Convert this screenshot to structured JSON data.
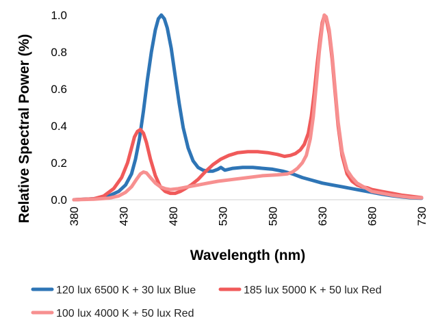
{
  "chart_data": {
    "type": "line",
    "title": "",
    "xlabel": "Wavelength (nm)",
    "ylabel": "Relative Spectral Power (%)",
    "xlim": [
      380,
      730
    ],
    "ylim": [
      0,
      1.0
    ],
    "xticks": [
      380,
      430,
      480,
      530,
      580,
      630,
      680,
      730
    ],
    "yticks": [
      "0.0",
      "0.2",
      "0.4",
      "0.6",
      "0.8",
      "1.0"
    ],
    "grid": false,
    "legend_position": "bottom",
    "series": [
      {
        "name": "120 lux 6500 K + 30 lux Blue",
        "color": "#2E75B6",
        "points": [
          [
            380,
            0.0
          ],
          [
            400,
            0.005
          ],
          [
            415,
            0.02
          ],
          [
            425,
            0.045
          ],
          [
            432,
            0.08
          ],
          [
            438,
            0.14
          ],
          [
            442,
            0.22
          ],
          [
            446,
            0.33
          ],
          [
            450,
            0.48
          ],
          [
            454,
            0.65
          ],
          [
            458,
            0.8
          ],
          [
            462,
            0.92
          ],
          [
            465,
            0.98
          ],
          [
            468,
            1.0
          ],
          [
            471,
            0.98
          ],
          [
            474,
            0.93
          ],
          [
            478,
            0.82
          ],
          [
            482,
            0.67
          ],
          [
            486,
            0.52
          ],
          [
            490,
            0.39
          ],
          [
            495,
            0.28
          ],
          [
            500,
            0.21
          ],
          [
            505,
            0.175
          ],
          [
            510,
            0.16
          ],
          [
            515,
            0.155
          ],
          [
            520,
            0.155
          ],
          [
            525,
            0.165
          ],
          [
            528,
            0.175
          ],
          [
            532,
            0.16
          ],
          [
            540,
            0.17
          ],
          [
            550,
            0.175
          ],
          [
            560,
            0.175
          ],
          [
            570,
            0.17
          ],
          [
            580,
            0.165
          ],
          [
            590,
            0.155
          ],
          [
            600,
            0.14
          ],
          [
            610,
            0.12
          ],
          [
            620,
            0.105
          ],
          [
            630,
            0.09
          ],
          [
            640,
            0.08
          ],
          [
            650,
            0.07
          ],
          [
            660,
            0.06
          ],
          [
            670,
            0.05
          ],
          [
            680,
            0.04
          ],
          [
            690,
            0.03
          ],
          [
            700,
            0.022
          ],
          [
            710,
            0.015
          ],
          [
            720,
            0.01
          ],
          [
            730,
            0.008
          ]
        ]
      },
      {
        "name": "185 lux 5000 K + 50 lux Red",
        "color": "#F05A5A",
        "points": [
          [
            380,
            0.0
          ],
          [
            400,
            0.005
          ],
          [
            410,
            0.02
          ],
          [
            420,
            0.06
          ],
          [
            428,
            0.12
          ],
          [
            434,
            0.2
          ],
          [
            438,
            0.28
          ],
          [
            441,
            0.34
          ],
          [
            444,
            0.37
          ],
          [
            447,
            0.38
          ],
          [
            450,
            0.36
          ],
          [
            453,
            0.31
          ],
          [
            457,
            0.22
          ],
          [
            462,
            0.13
          ],
          [
            467,
            0.07
          ],
          [
            472,
            0.045
          ],
          [
            477,
            0.035
          ],
          [
            482,
            0.035
          ],
          [
            487,
            0.045
          ],
          [
            492,
            0.06
          ],
          [
            498,
            0.08
          ],
          [
            505,
            0.11
          ],
          [
            512,
            0.15
          ],
          [
            520,
            0.19
          ],
          [
            528,
            0.22
          ],
          [
            536,
            0.24
          ],
          [
            545,
            0.255
          ],
          [
            555,
            0.26
          ],
          [
            565,
            0.26
          ],
          [
            575,
            0.255
          ],
          [
            585,
            0.245
          ],
          [
            592,
            0.235
          ],
          [
            598,
            0.24
          ],
          [
            603,
            0.25
          ],
          [
            608,
            0.27
          ],
          [
            612,
            0.3
          ],
          [
            616,
            0.36
          ],
          [
            619,
            0.45
          ],
          [
            622,
            0.58
          ],
          [
            625,
            0.74
          ],
          [
            628,
            0.88
          ],
          [
            630,
            0.96
          ],
          [
            632,
            0.995
          ],
          [
            634,
            0.98
          ],
          [
            637,
            0.9
          ],
          [
            640,
            0.76
          ],
          [
            643,
            0.58
          ],
          [
            646,
            0.4
          ],
          [
            650,
            0.24
          ],
          [
            655,
            0.14
          ],
          [
            660,
            0.1
          ],
          [
            665,
            0.08
          ],
          [
            670,
            0.07
          ],
          [
            675,
            0.065
          ],
          [
            680,
            0.055
          ],
          [
            690,
            0.045
          ],
          [
            700,
            0.035
          ],
          [
            710,
            0.025
          ],
          [
            720,
            0.018
          ],
          [
            730,
            0.012
          ]
        ]
      },
      {
        "name": "100 lux 4000 K + 50 lux Red",
        "color": "#F79090",
        "points": [
          [
            380,
            0.0
          ],
          [
            400,
            0.003
          ],
          [
            415,
            0.008
          ],
          [
            425,
            0.02
          ],
          [
            432,
            0.04
          ],
          [
            438,
            0.07
          ],
          [
            443,
            0.11
          ],
          [
            447,
            0.14
          ],
          [
            450,
            0.15
          ],
          [
            453,
            0.145
          ],
          [
            457,
            0.12
          ],
          [
            462,
            0.09
          ],
          [
            467,
            0.07
          ],
          [
            472,
            0.06
          ],
          [
            477,
            0.055
          ],
          [
            485,
            0.06
          ],
          [
            495,
            0.07
          ],
          [
            505,
            0.08
          ],
          [
            515,
            0.09
          ],
          [
            525,
            0.1
          ],
          [
            540,
            0.11
          ],
          [
            555,
            0.12
          ],
          [
            570,
            0.13
          ],
          [
            585,
            0.135
          ],
          [
            595,
            0.14
          ],
          [
            600,
            0.15
          ],
          [
            605,
            0.17
          ],
          [
            610,
            0.2
          ],
          [
            614,
            0.24
          ],
          [
            618,
            0.33
          ],
          [
            621,
            0.45
          ],
          [
            624,
            0.62
          ],
          [
            627,
            0.8
          ],
          [
            630,
            0.94
          ],
          [
            632,
            1.0
          ],
          [
            634,
            0.99
          ],
          [
            637,
            0.92
          ],
          [
            640,
            0.78
          ],
          [
            643,
            0.6
          ],
          [
            646,
            0.42
          ],
          [
            650,
            0.26
          ],
          [
            655,
            0.16
          ],
          [
            660,
            0.12
          ],
          [
            665,
            0.09
          ],
          [
            670,
            0.075
          ],
          [
            675,
            0.06
          ],
          [
            680,
            0.045
          ],
          [
            690,
            0.035
          ],
          [
            700,
            0.025
          ],
          [
            710,
            0.018
          ],
          [
            720,
            0.012
          ],
          [
            730,
            0.01
          ]
        ]
      }
    ]
  }
}
